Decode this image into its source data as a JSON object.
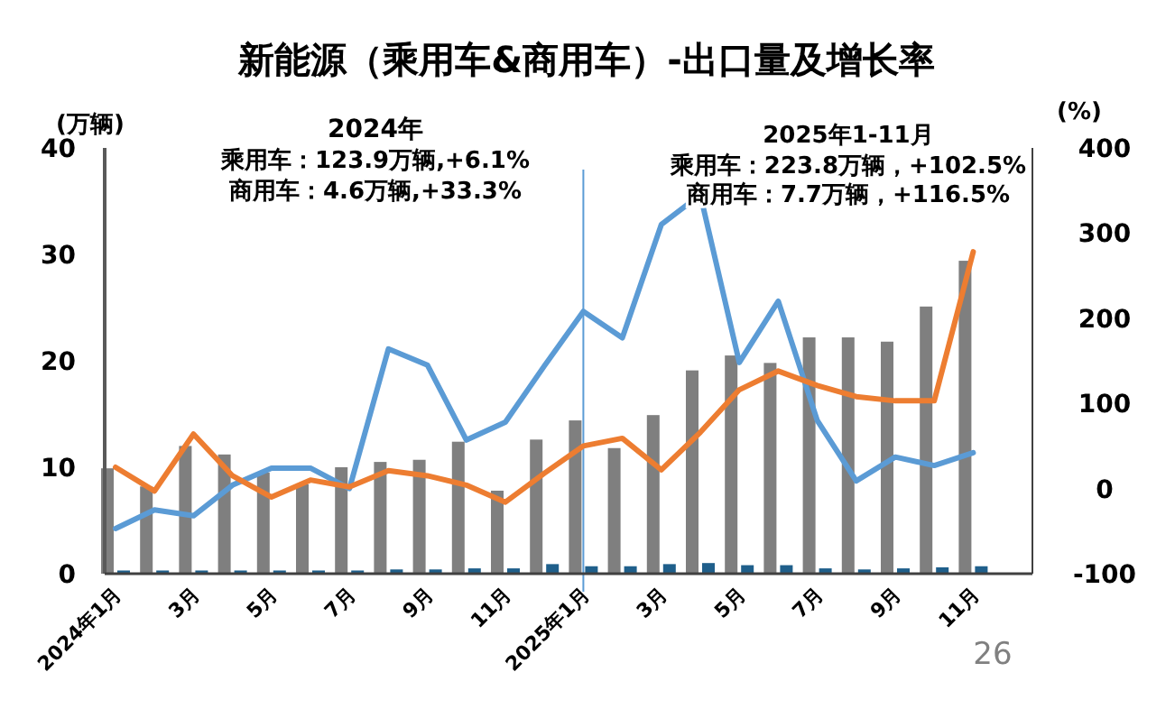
{
  "chart_data": {
    "type": "bar",
    "title": "新能源（乘用车&商用车）-出口量及增长率",
    "ylabel": "(万辆)",
    "y2label": "(%)",
    "categories": [
      "2024年1月",
      null,
      "3月",
      null,
      "5月",
      null,
      "7月",
      null,
      "9月",
      null,
      "11月",
      null,
      "2025年1月",
      null,
      "3月",
      null,
      "5月",
      null,
      "7月",
      null,
      "9月",
      null,
      "11月"
    ],
    "series": [
      {
        "color": "#7f7f7f",
        "values": [
          9.9,
          8.2,
          12.0,
          11.2,
          9.5,
          8.4,
          10.0,
          10.5,
          10.7,
          12.4,
          7.8,
          12.6,
          14.4,
          11.8,
          14.9,
          19.1,
          20.5,
          19.8,
          22.2,
          22.2,
          21.8,
          25.1,
          29.4
        ]
      },
      {
        "color": "#1f5f8b",
        "values": [
          0.3,
          0.3,
          0.3,
          0.3,
          0.3,
          0.3,
          0.3,
          0.4,
          0.4,
          0.5,
          0.5,
          0.9,
          0.7,
          0.7,
          0.9,
          1.0,
          0.8,
          0.8,
          0.5,
          0.4,
          0.5,
          0.6,
          0.7
        ]
      },
      {
        "type": "line",
        "axis": "y2",
        "color": "#5b9bd5",
        "values": [
          -47,
          -25,
          -32,
          4,
          24,
          24,
          0,
          164,
          145,
          57,
          78,
          144,
          208,
          177,
          310,
          345,
          148,
          220,
          80,
          9,
          37,
          27,
          42
        ]
      },
      {
        "type": "line",
        "axis": "y2",
        "color": "#ed7d31",
        "values": [
          25,
          -3,
          64,
          15,
          -10,
          10,
          2,
          21,
          15,
          4,
          -16,
          18,
          50,
          59,
          22,
          66,
          116,
          138,
          121,
          108,
          103,
          103,
          278
        ]
      }
    ],
    "ylim": [
      0,
      40
    ],
    "yticks": [
      0,
      10,
      20,
      30,
      40
    ],
    "y2lim": [
      -100,
      400
    ],
    "y2ticks": [
      -100,
      0,
      100,
      200,
      300,
      400
    ],
    "annotations": [
      "2024年",
      "乘用车：123.9万辆,+6.1%",
      "商用车：4.6万辆,+33.3%",
      "2025年1-11月",
      "乘用车：223.8万辆，+102.5%",
      "商用车：7.7万辆，+116.5%",
      "26"
    ],
    "ref_lines": [
      {
        "axis": "x",
        "value": "2025年1月",
        "color": "#5b9bd5"
      }
    ],
    "grid": false,
    "marker": "none",
    "line_style": "solid"
  }
}
